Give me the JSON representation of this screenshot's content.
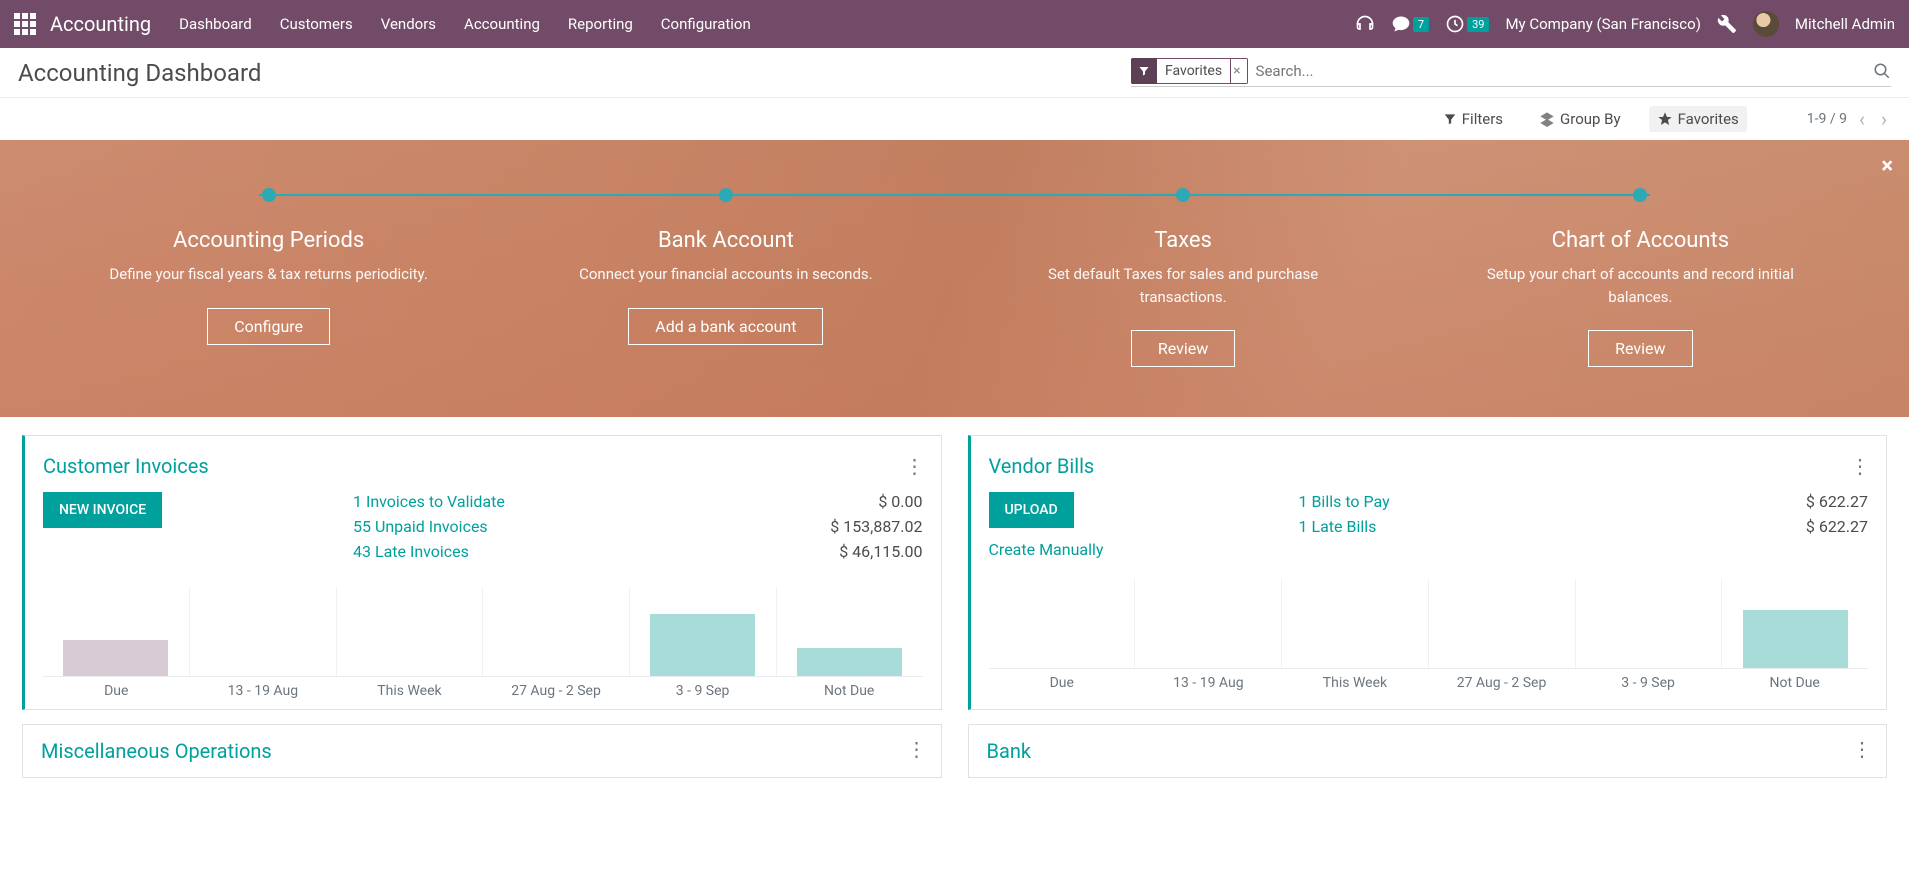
{
  "topnav": {
    "app_title": "Accounting",
    "items": [
      "Dashboard",
      "Customers",
      "Vendors",
      "Accounting",
      "Reporting",
      "Configuration"
    ],
    "messages_badge": "7",
    "activities_badge": "39",
    "company": "My Company (San Francisco)",
    "user": "Mitchell Admin"
  },
  "header": {
    "page_title": "Accounting Dashboard",
    "filter_chip": "Favorites",
    "search_placeholder": "Search...",
    "filters_label": "Filters",
    "groupby_label": "Group By",
    "favorites_label": "Favorites",
    "pager": "1-9 / 9"
  },
  "banner": {
    "steps": [
      {
        "title": "Accounting Periods",
        "desc": "Define your fiscal years & tax returns periodicity.",
        "btn": "Configure"
      },
      {
        "title": "Bank Account",
        "desc": "Connect your financial accounts in seconds.",
        "btn": "Add a bank account"
      },
      {
        "title": "Taxes",
        "desc": "Set default Taxes for sales and purchase transactions.",
        "btn": "Review"
      },
      {
        "title": "Chart of Accounts",
        "desc": "Setup your chart of accounts and record initial balances.",
        "btn": "Review"
      }
    ],
    "step_dot_color": "#2da8b5"
  },
  "cards": [
    {
      "title": "Customer Invoices",
      "primary_btn": "NEW INVOICE",
      "lines": [
        {
          "lbl": "1 Invoices to Validate",
          "val": "$ 0.00"
        },
        {
          "lbl": "55 Unpaid Invoices",
          "val": "$ 153,887.02"
        },
        {
          "lbl": "43 Late Invoices",
          "val": "$ 46,115.00"
        }
      ],
      "link": "",
      "chart": {
        "labels": [
          "Due",
          "13 - 19 Aug",
          "This Week",
          "27 Aug - 2 Sep",
          "3 - 9 Sep",
          "Not Due"
        ],
        "heights_pct": [
          40,
          0,
          0,
          0,
          70,
          32
        ],
        "colors": [
          "#d9cbd3",
          "#a7dcd9",
          "#a7dcd9",
          "#a7dcd9",
          "#a7dcd9",
          "#a7dcd9"
        ]
      }
    },
    {
      "title": "Vendor Bills",
      "primary_btn": "UPLOAD",
      "lines": [
        {
          "lbl": "1 Bills to Pay",
          "val": "$ 622.27"
        },
        {
          "lbl": "1 Late Bills",
          "val": "$ 622.27"
        }
      ],
      "link": "Create Manually",
      "chart": {
        "labels": [
          "Due",
          "13 - 19 Aug",
          "This Week",
          "27 Aug - 2 Sep",
          "3 - 9 Sep",
          "Not Due"
        ],
        "heights_pct": [
          0,
          0,
          0,
          0,
          0,
          65
        ],
        "colors": [
          "#d9cbd3",
          "#a7dcd9",
          "#a7dcd9",
          "#a7dcd9",
          "#a7dcd9",
          "#a7dcd9"
        ]
      }
    }
  ],
  "bottom_cards": [
    {
      "title": "Miscellaneous Operations"
    },
    {
      "title": "Bank"
    }
  ],
  "colors": {
    "accent": "#00a09d",
    "nav_bg": "#714b67",
    "due_bar": "#d9cbd3",
    "bar": "#a7dcd9"
  }
}
